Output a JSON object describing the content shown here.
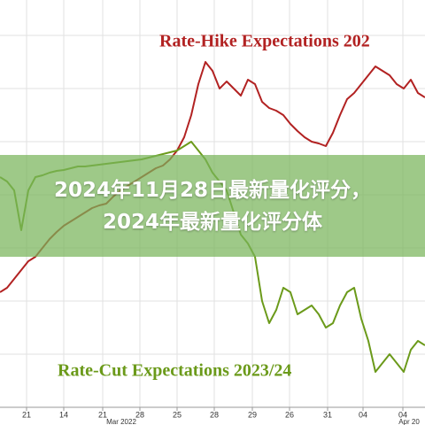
{
  "overlay_title": "2024年11月28日最新量化评分，2024年最新量化评分体",
  "chart_data": {
    "type": "line",
    "x": [
      0,
      8,
      16,
      24,
      32,
      40,
      48,
      56,
      64,
      72,
      80,
      88,
      96,
      104,
      112,
      120,
      128,
      136,
      144,
      152,
      160,
      168,
      176,
      184,
      192,
      200,
      208,
      216,
      224,
      232,
      240,
      248,
      256,
      264,
      272,
      280,
      288,
      296,
      304,
      312,
      320,
      328,
      336,
      344,
      352,
      360,
      368,
      376,
      384,
      392,
      400,
      408,
      416,
      424,
      432,
      440,
      448,
      456,
      464,
      472,
      480
    ],
    "xlim": [
      0,
      480
    ],
    "ylim": [
      0,
      46
    ],
    "grid": true,
    "xticks": [
      {
        "value": 30,
        "label": "21"
      },
      {
        "value": 72,
        "label": "14"
      },
      {
        "value": 116,
        "label": "21"
      },
      {
        "value": 158,
        "label": "28"
      },
      {
        "value": 200,
        "label": "25"
      },
      {
        "value": 242,
        "label": "28"
      },
      {
        "value": 285,
        "label": "29"
      },
      {
        "value": 327,
        "label": "26"
      },
      {
        "value": 370,
        "label": "31"
      },
      {
        "value": 410,
        "label": "04"
      },
      {
        "value": 455,
        "label": "04"
      }
    ],
    "period_labels": [
      {
        "value": 137,
        "label": "Mar 2022"
      },
      {
        "value": 462,
        "label": "Apr 20"
      }
    ],
    "series": [
      {
        "name": "Rate-Hike Expectations 202",
        "color": "#b22222",
        "values": [
          13,
          13.5,
          14.5,
          15.5,
          16.5,
          17,
          18,
          19,
          19.8,
          20.5,
          21,
          21.5,
          22,
          22.5,
          22.8,
          23,
          23.8,
          24.5,
          25,
          25.5,
          26,
          26.5,
          27,
          27.3,
          28,
          29,
          30.5,
          33,
          36.5,
          39,
          38,
          36,
          36.8,
          36,
          35.2,
          37,
          36.5,
          34.5,
          33.8,
          33.5,
          33,
          32,
          31.2,
          30.5,
          30,
          29.8,
          29.5,
          31,
          33,
          34.8,
          35.5,
          36.5,
          37.5,
          38.5,
          38,
          37.5,
          36.5,
          36,
          37,
          35.5,
          35
        ]
      },
      {
        "name": "Rate-Cut Expectations 2023/24",
        "color": "#6b9a1a",
        "values": [
          26,
          25.5,
          24.5,
          20,
          24.5,
          26,
          26.2,
          26.5,
          26.7,
          26.8,
          27,
          27.2,
          27.2,
          27.3,
          27.4,
          27.5,
          27.6,
          27.7,
          27.8,
          27.9,
          28,
          28.2,
          28.4,
          28.6,
          28.8,
          29,
          29.5,
          30,
          29,
          28,
          26.5,
          25.5,
          24.5,
          22,
          19.5,
          18.5,
          17,
          12,
          9.5,
          11,
          13.5,
          13,
          10.5,
          11,
          11.5,
          10.5,
          9,
          9.5,
          11.5,
          13,
          13.5,
          10,
          7.5,
          4,
          5,
          6,
          5,
          4,
          6.5,
          7.5,
          7
        ]
      }
    ]
  }
}
